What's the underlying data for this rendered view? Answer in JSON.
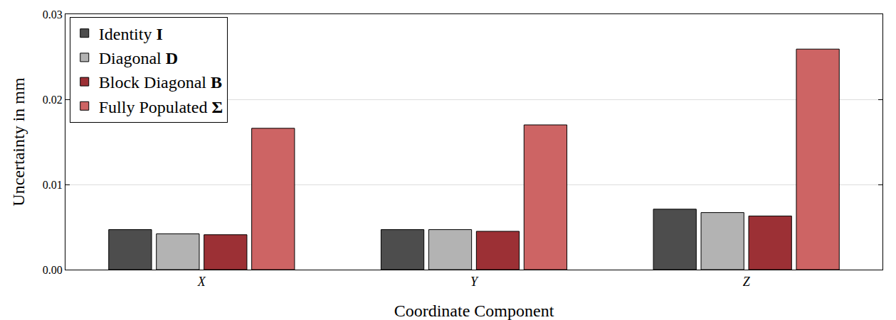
{
  "chart_data": {
    "type": "bar",
    "x_label": "Coordinate Component",
    "y_label": "Uncertainty in mm",
    "categories": [
      "X",
      "Y",
      "Z"
    ],
    "series": [
      {
        "name": "Identity I",
        "color": "#4d4d4d",
        "values": [
          0.0047,
          0.0047,
          0.0071
        ]
      },
      {
        "name": "Diagonal D",
        "color": "#b3b3b3",
        "values": [
          0.0042,
          0.0047,
          0.0067
        ]
      },
      {
        "name": "Block Diagonal B",
        "color": "#9c3035",
        "values": [
          0.0041,
          0.0045,
          0.0063
        ]
      },
      {
        "name": "Fully Populated Σ",
        "color": "#cd6464",
        "values": [
          0.0166,
          0.017,
          0.0259
        ]
      }
    ],
    "ylim": [
      0,
      0.03
    ],
    "yticks": [
      {
        "value": 0,
        "label": "0.00"
      },
      0.01,
      0.02,
      0.03
    ],
    "grid": true,
    "legend": "top-left"
  }
}
